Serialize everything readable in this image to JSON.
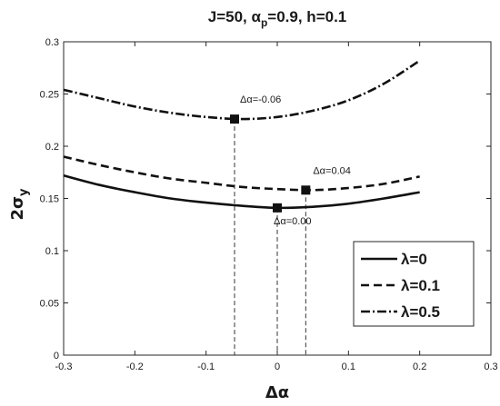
{
  "chart_data": {
    "type": "line",
    "title": "J=50, α_p=0.9, h=0.1",
    "title_parts": {
      "prefix": "J=50, ",
      "alpha": "α",
      "sub": "p",
      "suffix": "=0.9, h=0.1"
    },
    "xlabel": "Δα",
    "ylabel": {
      "base": "2σ",
      "sub": "y"
    },
    "xlim": [
      -0.3,
      0.3
    ],
    "ylim": [
      0,
      0.3
    ],
    "xticks": [
      "-0.3",
      "-0.2",
      "-0.1",
      "0",
      "0.1",
      "0.2",
      "0.3"
    ],
    "yticks": [
      "0",
      "0.05",
      "0.1",
      "0.15",
      "0.2",
      "0.25",
      "0.3"
    ],
    "grid": false,
    "legend_placement": "bottom-right",
    "series": [
      {
        "name": "λ=0",
        "style": "solid",
        "x": [
          -0.3,
          -0.25,
          -0.2,
          -0.15,
          -0.1,
          -0.05,
          0.0,
          0.05,
          0.1,
          0.15,
          0.2
        ],
        "y": [
          0.172,
          0.163,
          0.156,
          0.15,
          0.146,
          0.143,
          0.141,
          0.142,
          0.145,
          0.15,
          0.156
        ],
        "minimum": {
          "x": 0.0,
          "y": 0.141,
          "label": "Δα=0.00"
        }
      },
      {
        "name": "λ=0.1",
        "style": "dashed",
        "x": [
          -0.3,
          -0.25,
          -0.2,
          -0.15,
          -0.1,
          -0.05,
          0.0,
          0.05,
          0.1,
          0.15,
          0.2
        ],
        "y": [
          0.19,
          0.182,
          0.175,
          0.169,
          0.165,
          0.161,
          0.159,
          0.158,
          0.16,
          0.164,
          0.171
        ],
        "minimum": {
          "x": 0.04,
          "y": 0.158,
          "label": "Δα=0.04"
        }
      },
      {
        "name": "λ=0.5",
        "style": "dashdot",
        "x": [
          -0.3,
          -0.25,
          -0.2,
          -0.15,
          -0.1,
          -0.05,
          0.0,
          0.05,
          0.1,
          0.15,
          0.2
        ],
        "y": [
          0.254,
          0.246,
          0.238,
          0.232,
          0.228,
          0.226,
          0.228,
          0.234,
          0.244,
          0.26,
          0.282
        ],
        "minimum": {
          "x": -0.06,
          "y": 0.226,
          "label": "Δα=-0.06"
        }
      }
    ]
  }
}
